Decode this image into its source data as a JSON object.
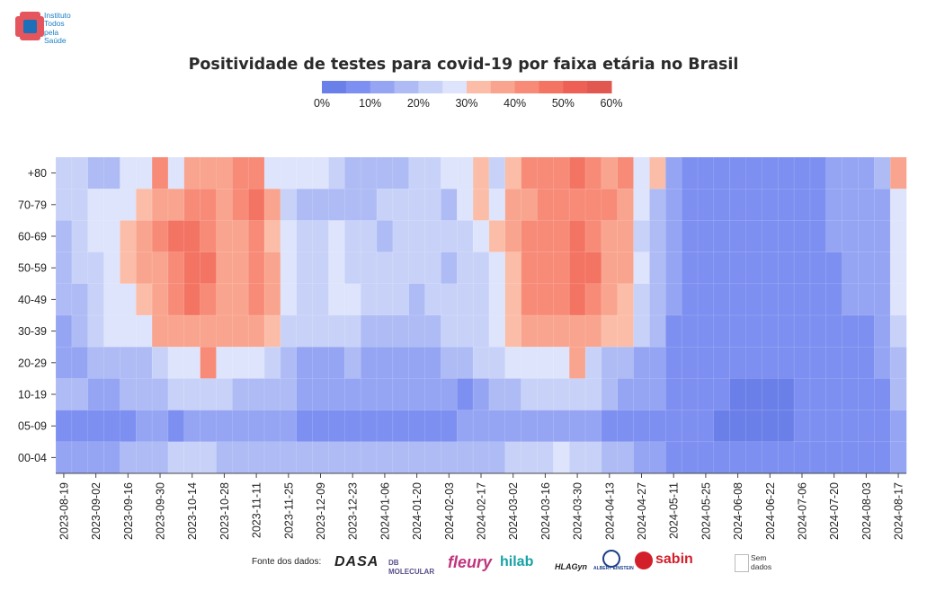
{
  "header": {
    "logo_text": "Instituto\nTodos\npela\nSaúde",
    "logo_colors": {
      "red": "#e4555e",
      "blue": "#1d6fb8"
    }
  },
  "chart_data": {
    "type": "heatmap",
    "title": "Positividade de testes para covid-19 por faixa etária no Brasil",
    "value_unit": "%",
    "color_scale": {
      "min": 0,
      "max": 60,
      "step": 5,
      "ticks": [
        "0%",
        "10%",
        "20%",
        "30%",
        "40%",
        "50%",
        "60%"
      ],
      "colors": [
        "#6b7fe8",
        "#7d8ff0",
        "#95a5f3",
        "#aebbf5",
        "#c8d2f8",
        "#dde4fb",
        "#fbbda8",
        "#f9a48e",
        "#f78b78",
        "#f37463",
        "#ee5f55",
        "#e05850"
      ],
      "legend_placement": "top-center"
    },
    "y_categories": [
      "+80",
      "70-79",
      "60-69",
      "50-59",
      "40-49",
      "30-39",
      "20-29",
      "10-19",
      "05-09",
      "00-04"
    ],
    "x_tick_labels": [
      "2023-08-19",
      "2023-09-02",
      "2023-09-16",
      "2023-09-30",
      "2023-10-14",
      "2023-10-28",
      "2023-11-11",
      "2023-11-25",
      "2023-12-09",
      "2023-12-23",
      "2024-01-06",
      "2024-01-20",
      "2024-02-03",
      "2024-02-17",
      "2024-03-02",
      "2024-03-16",
      "2024-03-30",
      "2024-04-13",
      "2024-04-27",
      "2024-05-11",
      "2024-05-25",
      "2024-06-08",
      "2024-06-22",
      "2024-07-06",
      "2024-07-20",
      "2024-08-03",
      "2024-08-17"
    ],
    "x_tick_every": 2,
    "week_count": 53,
    "first_week": "2023-08-19",
    "last_week": "2024-08-17",
    "values": [
      [
        22,
        20,
        18,
        15,
        25,
        29,
        40,
        28,
        38,
        39,
        38,
        43,
        44,
        27,
        28,
        29,
        26,
        22,
        19,
        17,
        18,
        16,
        22,
        22,
        29,
        29,
        30,
        24,
        30,
        41,
        42,
        44,
        46,
        44,
        39,
        42,
        26,
        30,
        13,
        8,
        7,
        7,
        6,
        6,
        5,
        6,
        7,
        8,
        13,
        13,
        11,
        15,
        38
      ],
      [
        21,
        23,
        28,
        28,
        26,
        30,
        39,
        38,
        40,
        40,
        39,
        43,
        45,
        38,
        21,
        19,
        19,
        19,
        17,
        17,
        20,
        21,
        20,
        21,
        19,
        29,
        30,
        26,
        36,
        39,
        40,
        40,
        44,
        41,
        40,
        38,
        28,
        18,
        12,
        8,
        7,
        7,
        6,
        6,
        5,
        6,
        7,
        8,
        12,
        12,
        11,
        14,
        28
      ],
      [
        19,
        21,
        26,
        29,
        33,
        38,
        42,
        45,
        47,
        43,
        37,
        38,
        42,
        32,
        27,
        24,
        23,
        25,
        22,
        20,
        18,
        21,
        21,
        22,
        21,
        24,
        27,
        30,
        37,
        42,
        44,
        43,
        45,
        42,
        36,
        37,
        21,
        17,
        11,
        7,
        6,
        6,
        5,
        5,
        5,
        6,
        7,
        8,
        10,
        11,
        11,
        13,
        27
      ],
      [
        18,
        20,
        23,
        25,
        31,
        37,
        37,
        41,
        48,
        47,
        37,
        37,
        43,
        37,
        28,
        24,
        21,
        25,
        24,
        21,
        23,
        22,
        21,
        23,
        17,
        20,
        24,
        27,
        34,
        40,
        43,
        42,
        47,
        46,
        38,
        36,
        25,
        17,
        10,
        7,
        6,
        6,
        5,
        5,
        5,
        6,
        7,
        8,
        9,
        10,
        11,
        13,
        26
      ],
      [
        17,
        19,
        21,
        28,
        26,
        32,
        36,
        43,
        46,
        44,
        37,
        38,
        43,
        37,
        27,
        24,
        23,
        26,
        25,
        23,
        23,
        22,
        17,
        20,
        23,
        23,
        22,
        28,
        34,
        40,
        41,
        40,
        45,
        42,
        38,
        30,
        22,
        16,
        10,
        7,
        6,
        6,
        5,
        5,
        5,
        6,
        7,
        7,
        9,
        10,
        10,
        12,
        25
      ],
      [
        13,
        17,
        22,
        27,
        27,
        28,
        36,
        38,
        38,
        38,
        38,
        37,
        38,
        30,
        22,
        20,
        23,
        22,
        21,
        17,
        17,
        18,
        17,
        17,
        20,
        21,
        24,
        29,
        34,
        39,
        37,
        38,
        38,
        36,
        34,
        31,
        22,
        16,
        9,
        7,
        6,
        6,
        5,
        5,
        5,
        5,
        6,
        7,
        8,
        9,
        9,
        11,
        22
      ],
      [
        14,
        14,
        19,
        17,
        18,
        19,
        22,
        25,
        27,
        41,
        27,
        27,
        28,
        24,
        15,
        14,
        14,
        14,
        16,
        14,
        13,
        14,
        13,
        13,
        16,
        17,
        20,
        21,
        28,
        26,
        27,
        28,
        36,
        23,
        18,
        16,
        13,
        11,
        8,
        6,
        5,
        5,
        5,
        5,
        5,
        5,
        6,
        7,
        7,
        8,
        9,
        11,
        19
      ],
      [
        18,
        16,
        14,
        14,
        15,
        15,
        17,
        20,
        21,
        21,
        20,
        19,
        19,
        18,
        15,
        13,
        12,
        12,
        12,
        14,
        12,
        12,
        11,
        11,
        12,
        8,
        14,
        15,
        18,
        21,
        22,
        22,
        21,
        20,
        17,
        13,
        11,
        10,
        8,
        6,
        5,
        5,
        4,
        4,
        4,
        4,
        5,
        6,
        7,
        7,
        8,
        9,
        17
      ],
      [
        7,
        7,
        7,
        9,
        9,
        12,
        10,
        9,
        10,
        11,
        12,
        12,
        12,
        11,
        10,
        8,
        8,
        7,
        8,
        7,
        8,
        9,
        8,
        8,
        9,
        10,
        11,
        11,
        12,
        12,
        13,
        13,
        14,
        12,
        9,
        9,
        7,
        7,
        6,
        5,
        5,
        4,
        4,
        4,
        4,
        4,
        5,
        6,
        6,
        6,
        6,
        7,
        12
      ],
      [
        13,
        10,
        12,
        12,
        15,
        15,
        17,
        20,
        21,
        20,
        19,
        18,
        19,
        18,
        16,
        15,
        15,
        15,
        15,
        16,
        15,
        16,
        15,
        15,
        15,
        16,
        17,
        17,
        20,
        20,
        22,
        25,
        23,
        24,
        17,
        16,
        12,
        10,
        8,
        7,
        6,
        5,
        5,
        5,
        5,
        5,
        6,
        6,
        7,
        7,
        7,
        8,
        13
      ]
    ]
  },
  "footer": {
    "sources_label": "Fonte dos dados:",
    "brands": [
      "DASA",
      "DB MOLECULAR",
      "fleury",
      "hilab",
      "HLAGyn",
      "ALBERT EINSTEIN",
      "sabin"
    ],
    "no_data_label": "Sem\ndados"
  }
}
